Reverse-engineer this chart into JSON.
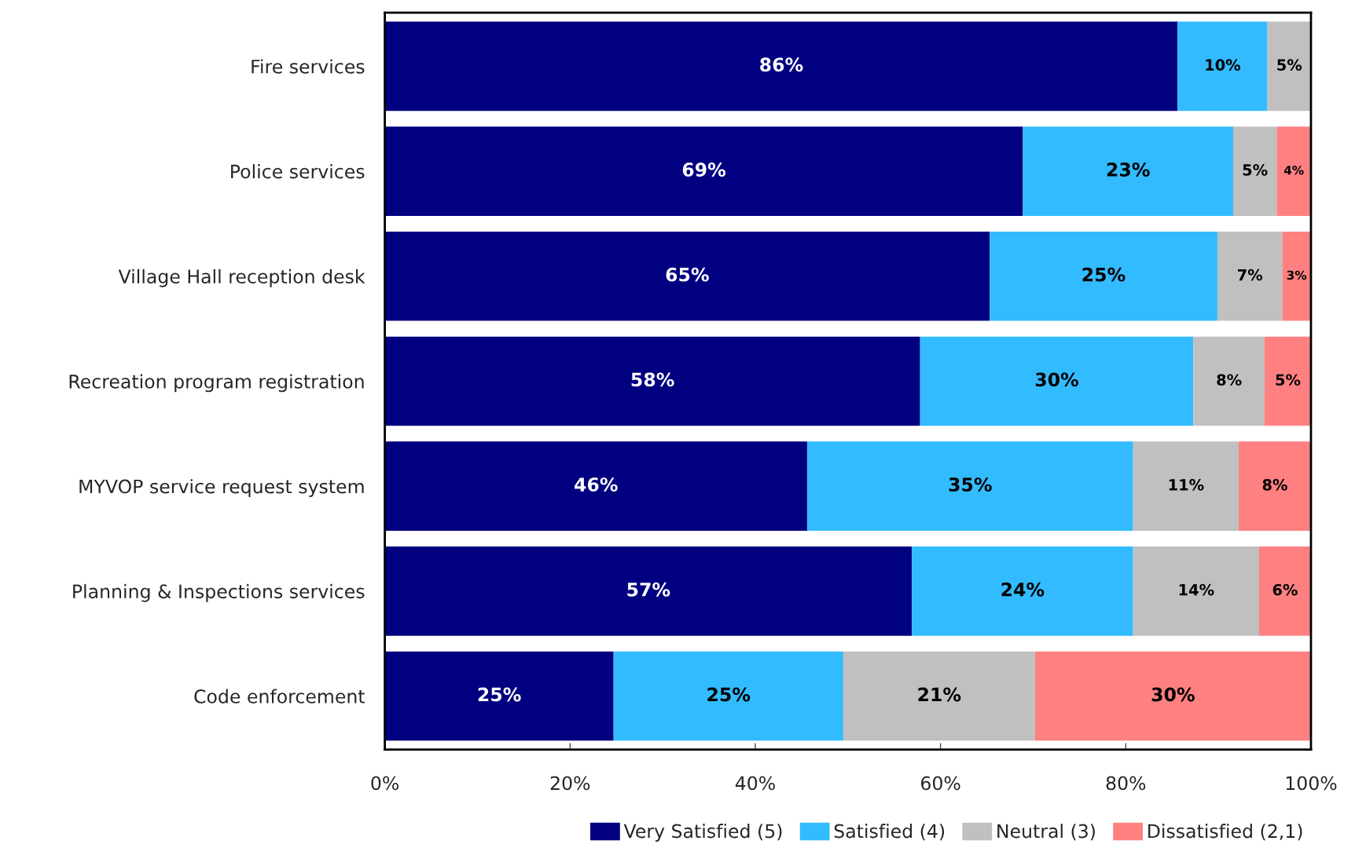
{
  "chart_data": {
    "type": "bar",
    "orientation": "horizontal",
    "stacked": true,
    "categories": [
      "Fire services",
      "Police services",
      "Village Hall reception desk",
      "Recreation program registration",
      "MYVOP service request system",
      "Planning & Inspections services",
      "Code enforcement"
    ],
    "series": [
      {
        "name": "Very Satisfied (5)",
        "color": "#000080",
        "values": [
          85.6,
          68.9,
          65.3,
          57.8,
          45.6,
          56.9,
          24.7
        ],
        "value_labels": [
          "86%",
          "69%",
          "65%",
          "58%",
          "46%",
          "57%",
          "25%"
        ]
      },
      {
        "name": "Satisfied (4)",
        "color": "#33bbff",
        "values": [
          9.7,
          22.7,
          24.6,
          29.5,
          35.2,
          23.9,
          24.8
        ],
        "value_labels": [
          "10%",
          "23%",
          "25%",
          "30%",
          "35%",
          "24%",
          "25%"
        ]
      },
      {
        "name": "Neutral (3)",
        "color": "#c0c0c0",
        "values": [
          4.7,
          4.7,
          7.0,
          7.7,
          11.4,
          13.6,
          20.7
        ],
        "value_labels": [
          "5%",
          "5%",
          "7%",
          "8%",
          "11%",
          "14%",
          "21%"
        ]
      },
      {
        "name": "Dissatisfied (2,1)",
        "color": "#ff8080",
        "values": [
          null,
          3.7,
          3.1,
          5.0,
          7.8,
          5.6,
          29.8
        ],
        "value_labels": [
          null,
          "4%",
          "3%",
          "5%",
          "8%",
          "6%",
          "30%"
        ]
      }
    ],
    "xlim": [
      0,
      100
    ],
    "xticks": [
      {
        "value": 0,
        "label": "0%"
      },
      {
        "value": 20,
        "label": "20%"
      },
      {
        "value": 40,
        "label": "40%"
      },
      {
        "value": 60,
        "label": "60%"
      },
      {
        "value": 80,
        "label": "80%"
      },
      {
        "value": 100,
        "label": "100%"
      }
    ],
    "grid": false,
    "legend": "bottom"
  }
}
